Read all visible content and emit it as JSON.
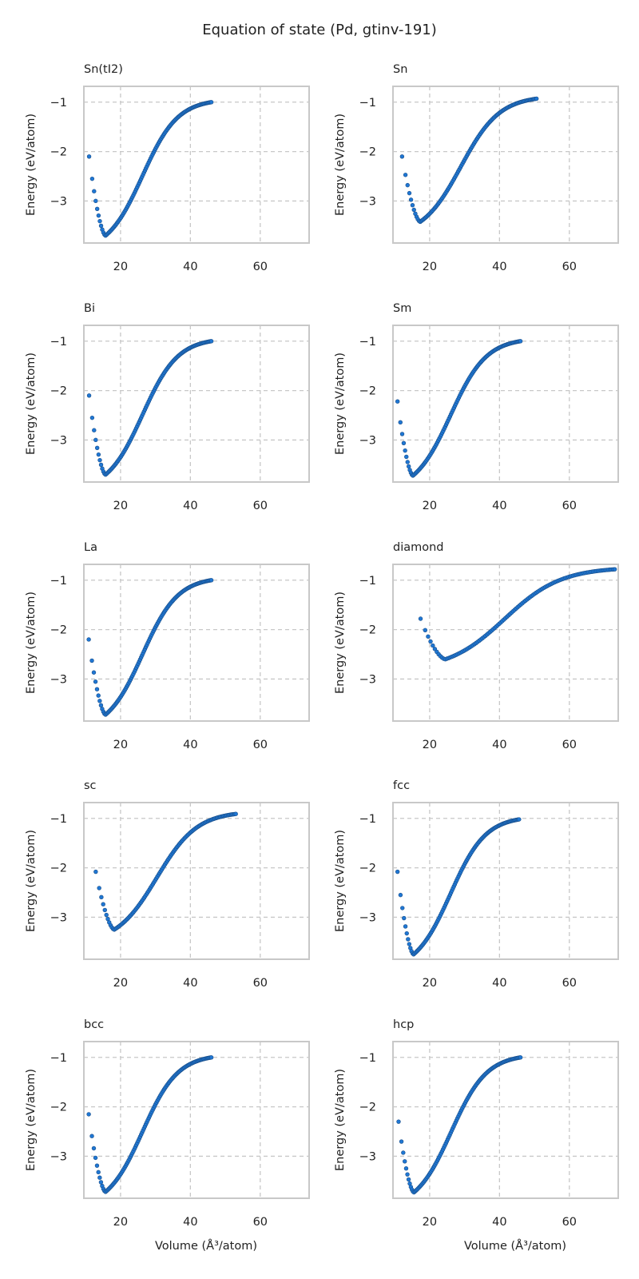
{
  "figure_title": "Equation of state (Pd, gtinv-191)",
  "x_tick_labels": [
    "20",
    "40",
    "60"
  ],
  "y_tick_labels": [
    "−1",
    "−2",
    "−3"
  ],
  "colors": {
    "marker": "#1f77d4",
    "marker_edge": "#1a4f8a",
    "grid": "#c8c8c8",
    "frame": "#c8c8c8"
  },
  "chart_data": [
    {
      "type": "scatter",
      "title": "Sn(tI2)",
      "ylabel": "Energy (eV/atom)",
      "xlabel": "",
      "xlim": [
        9.5,
        74
      ],
      "ylim": [
        -3.85,
        -0.68
      ],
      "grid": true,
      "series": [
        {
          "v_start": 11.0,
          "v_min": 15.7,
          "e_min": -3.7,
          "e_first": -2.1,
          "v_end": 46.0,
          "e_end": -1.0
        }
      ]
    },
    {
      "type": "scatter",
      "title": "Sn",
      "ylabel": "Energy (eV/atom)",
      "xlabel": "",
      "xlim": [
        9.5,
        74
      ],
      "ylim": [
        -3.85,
        -0.68
      ],
      "grid": true,
      "series": [
        {
          "v_start": 12.1,
          "v_min": 17.3,
          "e_min": -3.42,
          "e_first": -2.1,
          "v_end": 50.6,
          "e_end": -0.93
        }
      ]
    },
    {
      "type": "scatter",
      "title": "Bi",
      "ylabel": "Energy (eV/atom)",
      "xlabel": "",
      "xlim": [
        9.5,
        74
      ],
      "ylim": [
        -3.85,
        -0.68
      ],
      "grid": true,
      "series": [
        {
          "v_start": 11.0,
          "v_min": 15.7,
          "e_min": -3.7,
          "e_first": -2.1,
          "v_end": 46.0,
          "e_end": -1.0
        }
      ]
    },
    {
      "type": "scatter",
      "title": "Sm",
      "ylabel": "Energy (eV/atom)",
      "xlabel": "",
      "xlim": [
        9.5,
        74
      ],
      "ylim": [
        -3.85,
        -0.68
      ],
      "grid": true,
      "series": [
        {
          "v_start": 10.8,
          "v_min": 15.2,
          "e_min": -3.72,
          "e_first": -2.22,
          "v_end": 46.0,
          "e_end": -1.0
        }
      ]
    },
    {
      "type": "scatter",
      "title": "La",
      "ylabel": "Energy (eV/atom)",
      "xlabel": "",
      "xlim": [
        9.5,
        74
      ],
      "ylim": [
        -3.85,
        -0.68
      ],
      "grid": true,
      "series": [
        {
          "v_start": 10.9,
          "v_min": 15.7,
          "e_min": -3.72,
          "e_first": -2.2,
          "v_end": 46.0,
          "e_end": -1.0
        }
      ]
    },
    {
      "type": "scatter",
      "title": "diamond",
      "ylabel": "Energy (eV/atom)",
      "xlabel": "",
      "xlim": [
        9.5,
        74
      ],
      "ylim": [
        -3.85,
        -0.68
      ],
      "grid": true,
      "series": [
        {
          "v_start": 17.4,
          "v_min": 24.5,
          "e_min": -2.6,
          "e_first": -1.78,
          "v_end": 73.0,
          "e_end": -0.78
        }
      ]
    },
    {
      "type": "scatter",
      "title": "sc",
      "ylabel": "Energy (eV/atom)",
      "xlabel": "",
      "xlim": [
        9.5,
        74
      ],
      "ylim": [
        -3.85,
        -0.68
      ],
      "grid": true,
      "series": [
        {
          "v_start": 12.9,
          "v_min": 18.2,
          "e_min": -3.25,
          "e_first": -2.08,
          "v_end": 53.0,
          "e_end": -0.91
        }
      ]
    },
    {
      "type": "scatter",
      "title": "fcc",
      "ylabel": "Energy (eV/atom)",
      "xlabel": "",
      "xlim": [
        9.5,
        74
      ],
      "ylim": [
        -3.85,
        -0.68
      ],
      "grid": true,
      "series": [
        {
          "v_start": 10.8,
          "v_min": 15.4,
          "e_min": -3.75,
          "e_first": -2.08,
          "v_end": 45.6,
          "e_end": -1.02
        }
      ]
    },
    {
      "type": "scatter",
      "title": "bcc",
      "ylabel": "Energy (eV/atom)",
      "xlabel": "Volume (Å³/atom)",
      "xlim": [
        9.5,
        74
      ],
      "ylim": [
        -3.85,
        -0.68
      ],
      "grid": true,
      "series": [
        {
          "v_start": 10.9,
          "v_min": 15.7,
          "e_min": -3.72,
          "e_first": -2.15,
          "v_end": 46.0,
          "e_end": -1.0
        }
      ]
    },
    {
      "type": "scatter",
      "title": "hcp",
      "ylabel": "Energy (eV/atom)",
      "xlabel": "Volume (Å³/atom)",
      "xlim": [
        9.5,
        74
      ],
      "ylim": [
        -3.85,
        -0.68
      ],
      "grid": true,
      "series": [
        {
          "v_start": 11.1,
          "v_min": 15.5,
          "e_min": -3.73,
          "e_first": -2.3,
          "v_end": 46.0,
          "e_end": -1.0
        }
      ]
    }
  ]
}
